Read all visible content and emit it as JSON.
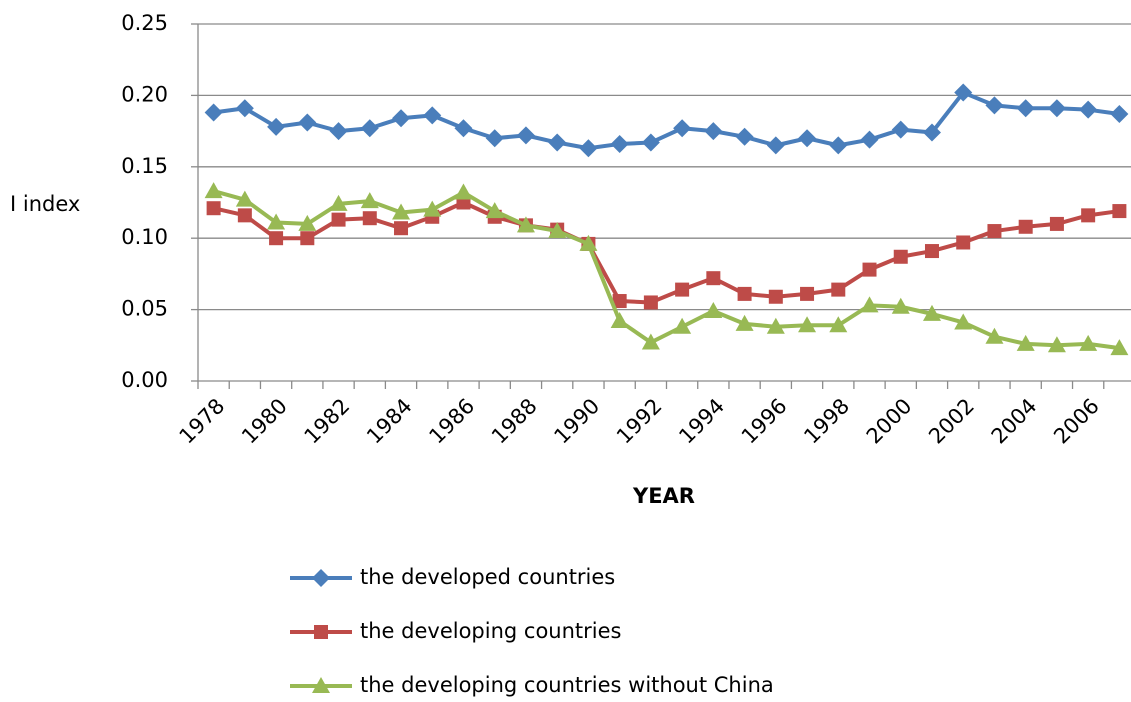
{
  "chart_data": {
    "type": "line",
    "y_label": "I index",
    "x_label": "YEAR",
    "categories": [
      "1978",
      null,
      "1980",
      null,
      "1982",
      null,
      "1984",
      null,
      "1986",
      null,
      "1988",
      null,
      "1990",
      null,
      "1992",
      null,
      "1994",
      null,
      "1996",
      null,
      "1998",
      null,
      "2000",
      null,
      "2002",
      null,
      "2004",
      null,
      "2006",
      null
    ],
    "series": [
      {
        "name": "the developed countries",
        "color": "#4a7ebb",
        "marker": "diamond",
        "values": [
          0.188,
          0.191,
          0.178,
          0.181,
          0.175,
          0.177,
          0.184,
          0.186,
          0.177,
          0.17,
          0.172,
          0.167,
          0.163,
          0.166,
          0.167,
          0.177,
          0.175,
          0.171,
          0.165,
          0.17,
          0.165,
          0.169,
          0.176,
          0.174,
          0.202,
          0.193,
          0.191,
          0.191,
          0.19,
          0.187
        ]
      },
      {
        "name": "the developing countries",
        "color": "#be4b48",
        "marker": "square",
        "values": [
          0.121,
          0.116,
          0.1,
          0.1,
          0.113,
          0.114,
          0.107,
          0.115,
          0.125,
          0.115,
          0.109,
          0.106,
          0.096,
          0.056,
          0.055,
          0.064,
          0.072,
          0.061,
          0.059,
          0.061,
          0.064,
          0.078,
          0.087,
          0.091,
          0.097,
          0.105,
          0.108,
          0.11,
          0.116,
          0.119
        ]
      },
      {
        "name": "the developing countries without China",
        "color": "#98b954",
        "marker": "triangle",
        "values": [
          0.133,
          0.127,
          0.111,
          0.11,
          0.124,
          0.126,
          0.118,
          0.12,
          0.132,
          0.119,
          0.109,
          0.105,
          0.096,
          0.042,
          0.027,
          0.038,
          0.049,
          0.04,
          0.038,
          0.039,
          0.039,
          0.053,
          0.052,
          0.047,
          0.041,
          0.031,
          0.026,
          0.025,
          0.026,
          0.023
        ]
      }
    ],
    "ylim": [
      0,
      0.25
    ],
    "yticks": [
      {
        "value": 0,
        "label": "0.00"
      },
      {
        "value": 0.05,
        "label": "0.05"
      },
      {
        "value": 0.1,
        "label": "0.10"
      },
      {
        "value": 0.15,
        "label": "0.15"
      },
      {
        "value": 0.2,
        "label": "0.20"
      },
      {
        "value": 0.25,
        "label": "0.25"
      }
    ],
    "grid": true,
    "legend": "bottom"
  }
}
